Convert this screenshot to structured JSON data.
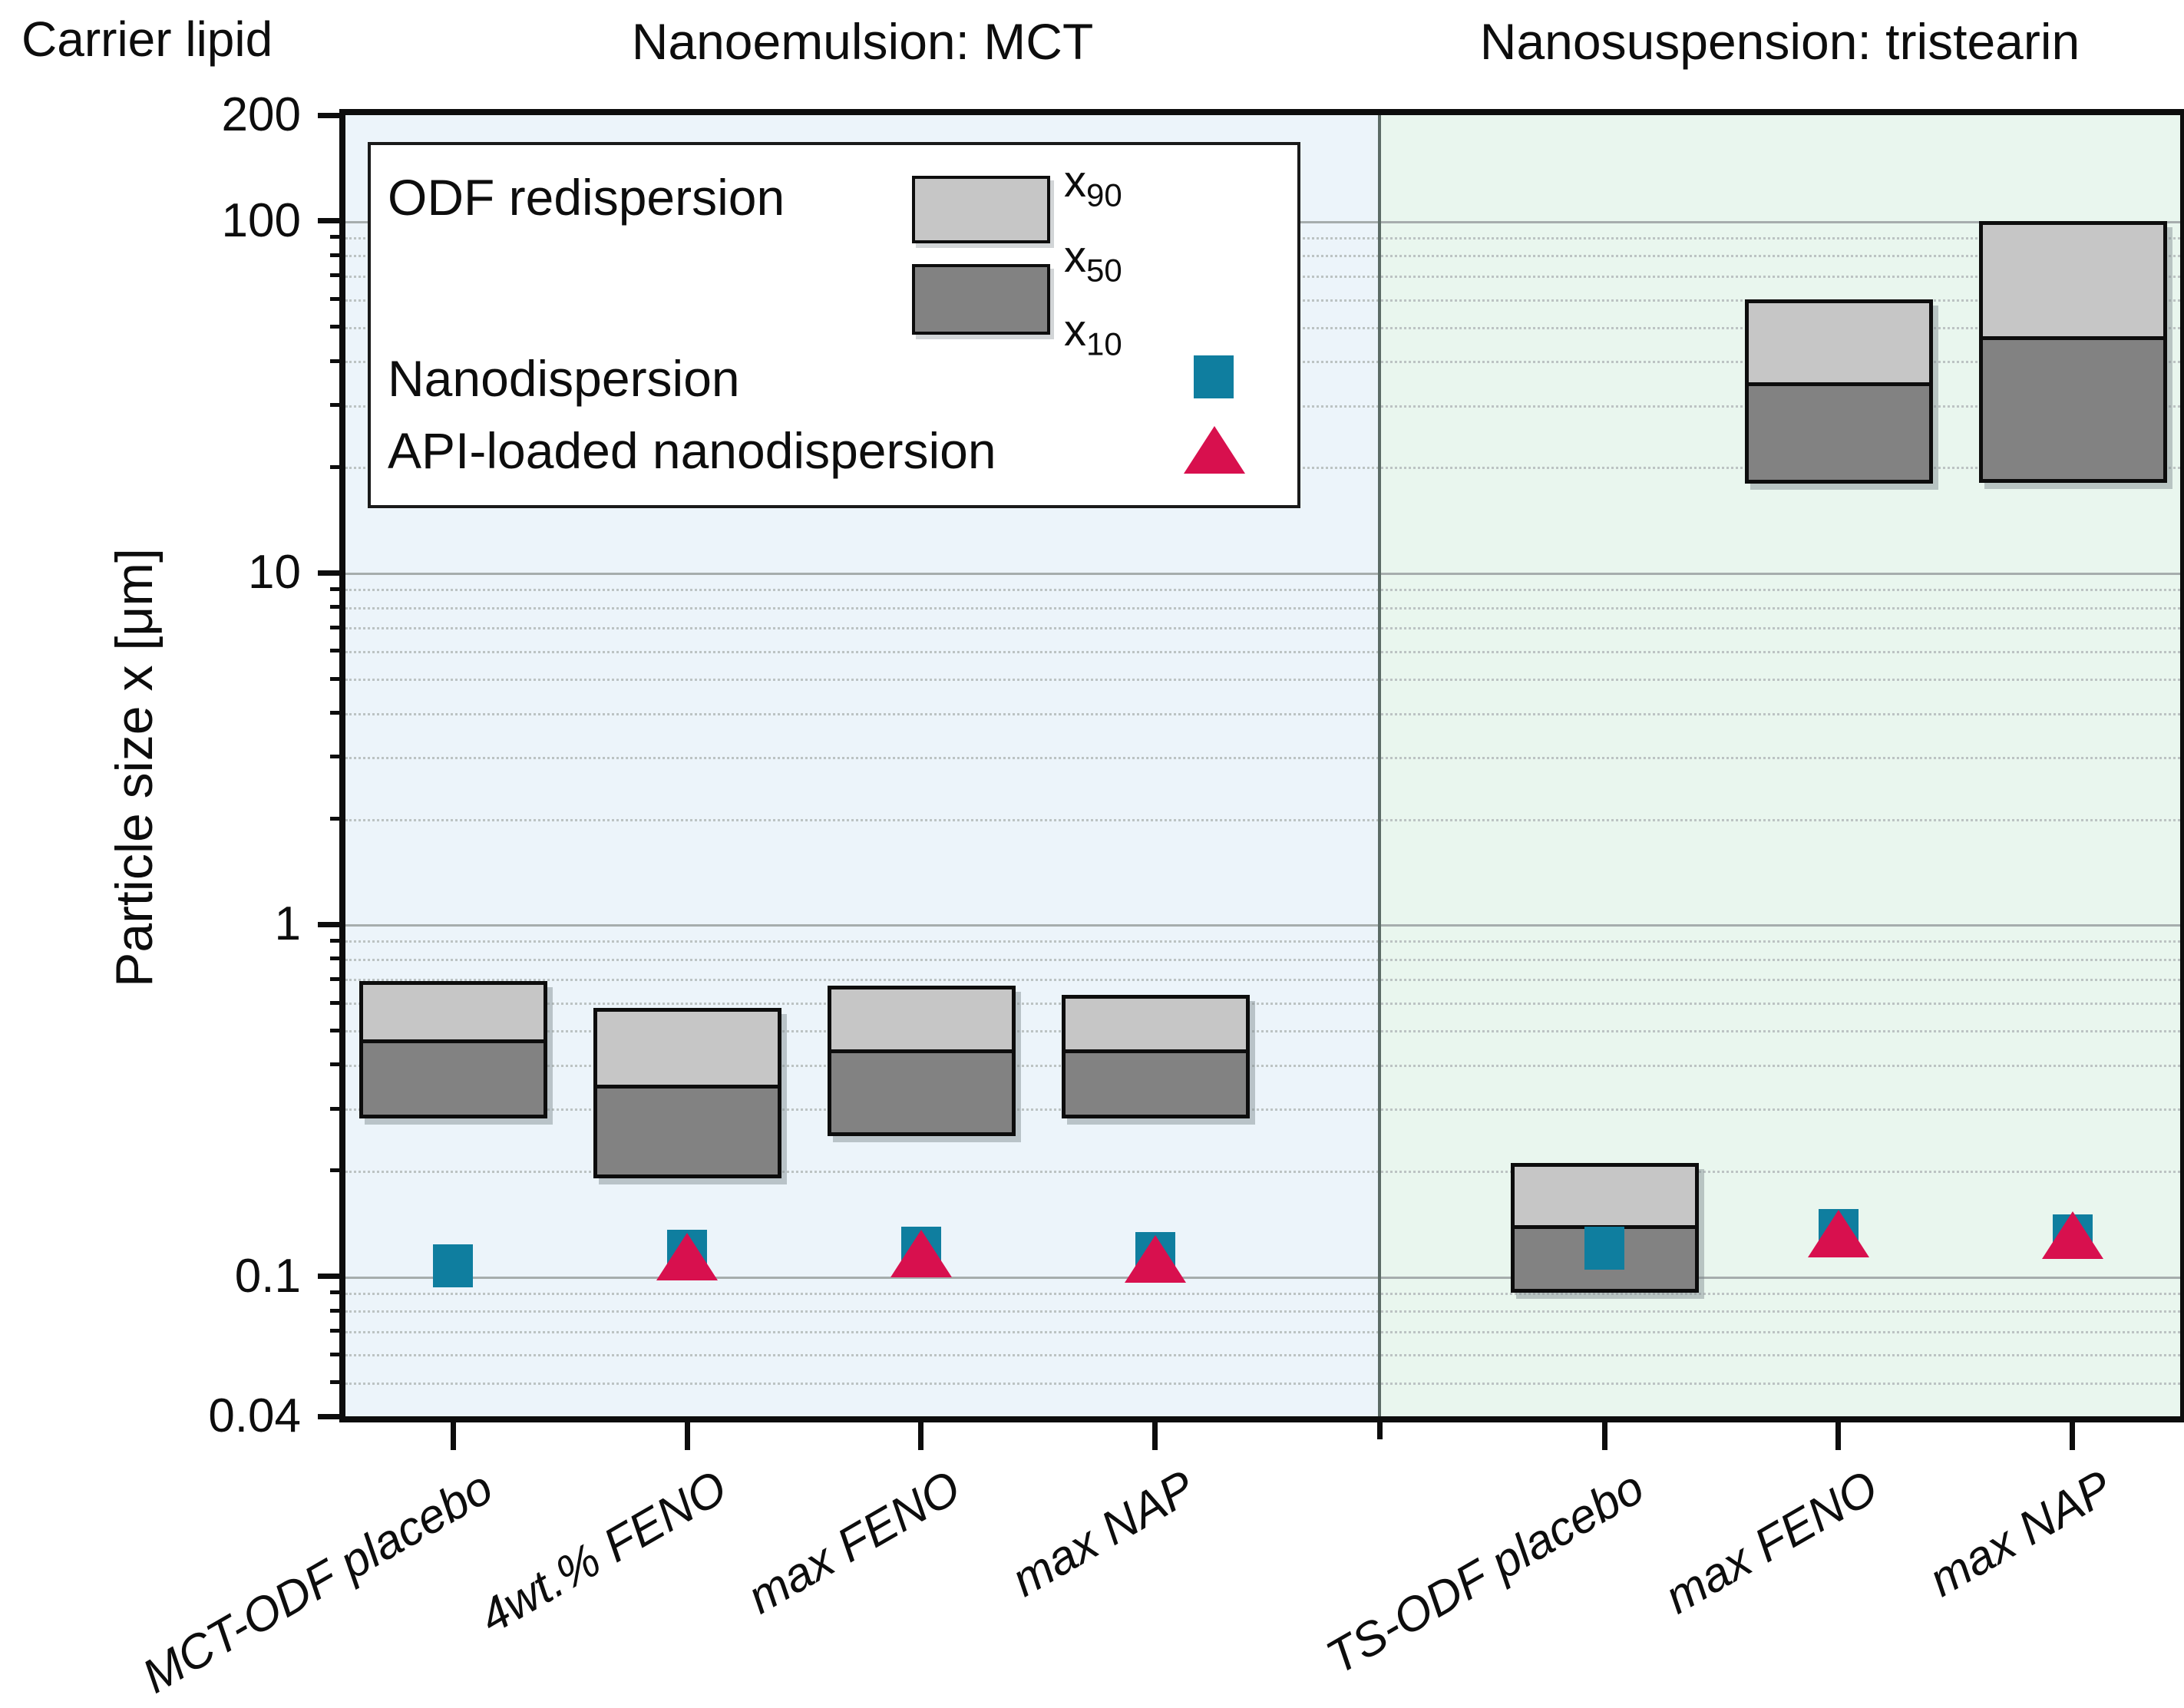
{
  "legend": {
    "odf_label": "ODF redispersion",
    "box_labels": [
      {
        "base": "x",
        "sub": "90"
      },
      {
        "base": "x",
        "sub": "50"
      },
      {
        "base": "x",
        "sub": "10"
      }
    ],
    "nanodispersion_label": "Nanodispersion",
    "api_label": "API-loaded nanodispersion"
  },
  "chart_data": {
    "type": "bar",
    "subtype": "floating-bar-with-scatter-markers",
    "x_axis": {
      "title": "Carrier lipid"
    },
    "y_axis": {
      "label": "Particle size x [μm]",
      "scale": "log",
      "ylim": [
        0.04,
        200
      ],
      "unit": "μm",
      "tick_values": [
        200,
        100,
        10,
        1,
        0.1,
        0.04
      ],
      "tick_labels": [
        "200",
        "100",
        "10",
        "1",
        "0.1",
        "0.04"
      ],
      "grid": "major-solid-minor-dotted"
    },
    "series_legend": [
      "ODF redispersion x90/x50/x10",
      "Nanodispersion",
      "API-loaded nanodispersion"
    ],
    "groups": [
      {
        "title": "Nanoemulsion: MCT",
        "carrier": "MCT",
        "categories": [
          {
            "label": "MCT-ODF placebo",
            "x10": 0.28,
            "x50": 0.47,
            "x90": 0.69,
            "nanodispersion": 0.107,
            "api_loaded": null
          },
          {
            "label": "4wt.% FENO",
            "x10": 0.19,
            "x50": 0.35,
            "x90": 0.58,
            "nanodispersion": 0.118,
            "api_loaded": 0.114
          },
          {
            "label": "max FENO",
            "x10": 0.25,
            "x50": 0.44,
            "x90": 0.67,
            "nanodispersion": 0.12,
            "api_loaded": 0.116
          },
          {
            "label": "max NAP",
            "x10": 0.28,
            "x50": 0.44,
            "x90": 0.63,
            "nanodispersion": 0.116,
            "api_loaded": 0.112
          }
        ]
      },
      {
        "title": "Nanosuspension: tristearin",
        "carrier": "tristearin",
        "categories": [
          {
            "label": "TS-ODF placebo",
            "x10": 0.09,
            "x50": 0.14,
            "x90": 0.21,
            "nanodispersion": 0.12,
            "api_loaded": null
          },
          {
            "label": "max FENO",
            "x10": 18,
            "x50": 35,
            "x90": 60,
            "nanodispersion": 0.135,
            "api_loaded": 0.132
          },
          {
            "label": "max NAP",
            "x10": 18,
            "x50": 47,
            "x90": 100,
            "nanodispersion": 0.13,
            "api_loaded": 0.131
          }
        ]
      }
    ],
    "colors": {
      "group_bg_left": "#ecf4fa",
      "group_bg_right": "#e9f6ee",
      "bar_upper_x50_x90": "#c6c6c6",
      "bar_lower_x10_x50": "#828282",
      "bar_border": "#0d0d0d",
      "nanodispersion_marker": "#0f7e9f",
      "api_loaded_marker": "#d8104e",
      "grid_major": "#a6adad",
      "grid_minor": "#bcc3c3",
      "region_divider": "#5c6b66",
      "axis": "#0d0d0d"
    }
  }
}
